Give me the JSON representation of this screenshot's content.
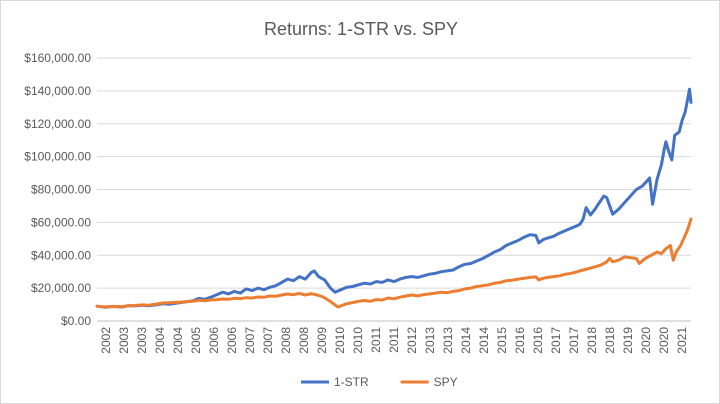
{
  "chart_data": {
    "type": "line",
    "title": "Returns: 1-STR vs. SPY",
    "xlabel": "",
    "ylabel": "",
    "x_ticks": [
      "2002",
      "2003",
      "2003",
      "2004",
      "2004",
      "2005",
      "2006",
      "2006",
      "2007",
      "2007",
      "2008",
      "2008",
      "2009",
      "2010",
      "2010",
      "2011",
      "2011",
      "2012",
      "2013",
      "2013",
      "2014",
      "2014",
      "2015",
      "2016",
      "2016",
      "2017",
      "2017",
      "2018",
      "2018",
      "2019",
      "2020",
      "2020",
      "2021"
    ],
    "x_range": [
      2001.75,
      2021.85
    ],
    "ylim": [
      0,
      160000
    ],
    "y_ticks": [
      0,
      20000,
      40000,
      60000,
      80000,
      100000,
      120000,
      140000,
      160000
    ],
    "y_tick_labels": [
      "$0.00",
      "$20,000.00",
      "$40,000.00",
      "$60,000.00",
      "$80,000.00",
      "$100,000.00",
      "$120,000.00",
      "$140,000.00",
      "$160,000.00"
    ],
    "grid": true,
    "legend": "bottom",
    "series": [
      {
        "name": "1-STR",
        "color": "#4472C4",
        "points": [
          [
            2001.75,
            9000
          ],
          [
            2002.0,
            8400
          ],
          [
            2002.3,
            8800
          ],
          [
            2002.6,
            8500
          ],
          [
            2002.8,
            9300
          ],
          [
            2003.0,
            9200
          ],
          [
            2003.3,
            9600
          ],
          [
            2003.5,
            9300
          ],
          [
            2003.8,
            10000
          ],
          [
            2004.0,
            10500
          ],
          [
            2004.2,
            10200
          ],
          [
            2004.5,
            11000
          ],
          [
            2004.8,
            11800
          ],
          [
            2005.0,
            12200
          ],
          [
            2005.2,
            13800
          ],
          [
            2005.4,
            13200
          ],
          [
            2005.6,
            14500
          ],
          [
            2005.8,
            16000
          ],
          [
            2006.0,
            17500
          ],
          [
            2006.2,
            16500
          ],
          [
            2006.4,
            18000
          ],
          [
            2006.6,
            17000
          ],
          [
            2006.8,
            19500
          ],
          [
            2007.0,
            18500
          ],
          [
            2007.2,
            20000
          ],
          [
            2007.4,
            19000
          ],
          [
            2007.6,
            20500
          ],
          [
            2007.8,
            21500
          ],
          [
            2008.0,
            23500
          ],
          [
            2008.2,
            25500
          ],
          [
            2008.4,
            24500
          ],
          [
            2008.6,
            27000
          ],
          [
            2008.8,
            25500
          ],
          [
            2009.0,
            29500
          ],
          [
            2009.1,
            30500
          ],
          [
            2009.25,
            27000
          ],
          [
            2009.45,
            25000
          ],
          [
            2009.65,
            20000
          ],
          [
            2009.8,
            17500
          ],
          [
            2010.0,
            19000
          ],
          [
            2010.2,
            20500
          ],
          [
            2010.4,
            21000
          ],
          [
            2010.6,
            22000
          ],
          [
            2010.8,
            23000
          ],
          [
            2011.0,
            22500
          ],
          [
            2011.2,
            24000
          ],
          [
            2011.4,
            23500
          ],
          [
            2011.6,
            25000
          ],
          [
            2011.8,
            24000
          ],
          [
            2012.0,
            25500
          ],
          [
            2012.2,
            26500
          ],
          [
            2012.4,
            27000
          ],
          [
            2012.6,
            26500
          ],
          [
            2012.8,
            27500
          ],
          [
            2013.0,
            28500
          ],
          [
            2013.2,
            29000
          ],
          [
            2013.4,
            30000
          ],
          [
            2013.6,
            30500
          ],
          [
            2013.8,
            31000
          ],
          [
            2014.0,
            33000
          ],
          [
            2014.2,
            34500
          ],
          [
            2014.4,
            35000
          ],
          [
            2014.6,
            36500
          ],
          [
            2014.8,
            38000
          ],
          [
            2015.0,
            40000
          ],
          [
            2015.2,
            42000
          ],
          [
            2015.4,
            43500
          ],
          [
            2015.6,
            46000
          ],
          [
            2015.8,
            47500
          ],
          [
            2016.0,
            49000
          ],
          [
            2016.2,
            51000
          ],
          [
            2016.4,
            52500
          ],
          [
            2016.6,
            52000
          ],
          [
            2016.7,
            47500
          ],
          [
            2016.85,
            49500
          ],
          [
            2017.0,
            50500
          ],
          [
            2017.2,
            51500
          ],
          [
            2017.4,
            53500
          ],
          [
            2017.6,
            55000
          ],
          [
            2017.8,
            56500
          ],
          [
            2018.0,
            58000
          ],
          [
            2018.1,
            59000
          ],
          [
            2018.2,
            62000
          ],
          [
            2018.3,
            69000
          ],
          [
            2018.45,
            64500
          ],
          [
            2018.6,
            68000
          ],
          [
            2018.75,
            72000
          ],
          [
            2018.9,
            76000
          ],
          [
            2019.0,
            75000
          ],
          [
            2019.1,
            70000
          ],
          [
            2019.2,
            65000
          ],
          [
            2019.4,
            68000
          ],
          [
            2019.6,
            72000
          ],
          [
            2019.8,
            76000
          ],
          [
            2020.0,
            80000
          ],
          [
            2020.2,
            82000
          ],
          [
            2020.35,
            85000
          ],
          [
            2020.45,
            87000
          ],
          [
            2020.55,
            71000
          ],
          [
            2020.7,
            86000
          ],
          [
            2020.85,
            95000
          ],
          [
            2020.95,
            105000
          ],
          [
            2021.0,
            109000
          ],
          [
            2021.1,
            103000
          ],
          [
            2021.2,
            98000
          ],
          [
            2021.3,
            113000
          ],
          [
            2021.45,
            115000
          ],
          [
            2021.55,
            122000
          ],
          [
            2021.65,
            127000
          ],
          [
            2021.75,
            136000
          ],
          [
            2021.8,
            141000
          ],
          [
            2021.85,
            133000
          ]
        ]
      },
      {
        "name": "SPY",
        "color": "#ED7D31",
        "points": [
          [
            2001.75,
            9000
          ],
          [
            2002.0,
            8600
          ],
          [
            2002.3,
            8900
          ],
          [
            2002.6,
            8700
          ],
          [
            2002.8,
            9300
          ],
          [
            2003.0,
            9400
          ],
          [
            2003.3,
            9800
          ],
          [
            2003.5,
            9600
          ],
          [
            2003.8,
            10400
          ],
          [
            2004.0,
            11000
          ],
          [
            2004.2,
            11100
          ],
          [
            2004.5,
            11400
          ],
          [
            2004.8,
            11800
          ],
          [
            2005.0,
            12000
          ],
          [
            2005.2,
            12600
          ],
          [
            2005.4,
            12300
          ],
          [
            2005.6,
            12800
          ],
          [
            2005.8,
            13000
          ],
          [
            2006.0,
            13400
          ],
          [
            2006.2,
            13200
          ],
          [
            2006.4,
            13800
          ],
          [
            2006.6,
            13600
          ],
          [
            2006.8,
            14200
          ],
          [
            2007.0,
            14000
          ],
          [
            2007.2,
            14600
          ],
          [
            2007.4,
            14500
          ],
          [
            2007.6,
            15200
          ],
          [
            2007.8,
            15000
          ],
          [
            2008.0,
            15800
          ],
          [
            2008.2,
            16400
          ],
          [
            2008.4,
            16000
          ],
          [
            2008.6,
            16800
          ],
          [
            2008.8,
            15800
          ],
          [
            2009.0,
            16600
          ],
          [
            2009.2,
            15800
          ],
          [
            2009.4,
            14600
          ],
          [
            2009.6,
            12500
          ],
          [
            2009.75,
            10500
          ],
          [
            2009.9,
            8500
          ],
          [
            2010.05,
            9500
          ],
          [
            2010.2,
            10500
          ],
          [
            2010.4,
            11200
          ],
          [
            2010.6,
            12000
          ],
          [
            2010.8,
            12500
          ],
          [
            2011.0,
            12000
          ],
          [
            2011.2,
            13000
          ],
          [
            2011.4,
            12800
          ],
          [
            2011.6,
            14000
          ],
          [
            2011.8,
            13500
          ],
          [
            2012.0,
            14500
          ],
          [
            2012.2,
            15200
          ],
          [
            2012.4,
            15800
          ],
          [
            2012.6,
            15300
          ],
          [
            2012.8,
            16000
          ],
          [
            2013.0,
            16500
          ],
          [
            2013.2,
            17000
          ],
          [
            2013.4,
            17500
          ],
          [
            2013.6,
            17200
          ],
          [
            2013.8,
            18000
          ],
          [
            2014.0,
            18500
          ],
          [
            2014.2,
            19500
          ],
          [
            2014.4,
            20000
          ],
          [
            2014.6,
            21000
          ],
          [
            2014.8,
            21500
          ],
          [
            2015.0,
            22000
          ],
          [
            2015.2,
            23000
          ],
          [
            2015.4,
            23500
          ],
          [
            2015.6,
            24500
          ],
          [
            2015.8,
            24800
          ],
          [
            2016.0,
            25500
          ],
          [
            2016.2,
            26000
          ],
          [
            2016.4,
            26500
          ],
          [
            2016.6,
            26800
          ],
          [
            2016.7,
            25000
          ],
          [
            2016.85,
            26000
          ],
          [
            2017.0,
            26500
          ],
          [
            2017.2,
            27000
          ],
          [
            2017.4,
            27500
          ],
          [
            2017.6,
            28500
          ],
          [
            2017.8,
            29000
          ],
          [
            2018.0,
            30000
          ],
          [
            2018.2,
            31000
          ],
          [
            2018.4,
            32000
          ],
          [
            2018.6,
            33000
          ],
          [
            2018.8,
            34000
          ],
          [
            2019.0,
            36000
          ],
          [
            2019.1,
            38000
          ],
          [
            2019.2,
            36000
          ],
          [
            2019.4,
            37000
          ],
          [
            2019.6,
            39000
          ],
          [
            2019.8,
            38500
          ],
          [
            2020.0,
            38000
          ],
          [
            2020.1,
            35000
          ],
          [
            2020.3,
            38000
          ],
          [
            2020.5,
            40000
          ],
          [
            2020.7,
            42000
          ],
          [
            2020.85,
            41000
          ],
          [
            2021.0,
            44000
          ],
          [
            2021.15,
            46000
          ],
          [
            2021.25,
            37000
          ],
          [
            2021.35,
            42000
          ],
          [
            2021.5,
            46000
          ],
          [
            2021.6,
            50000
          ],
          [
            2021.7,
            54000
          ],
          [
            2021.78,
            58000
          ],
          [
            2021.85,
            62000
          ]
        ]
      }
    ]
  }
}
